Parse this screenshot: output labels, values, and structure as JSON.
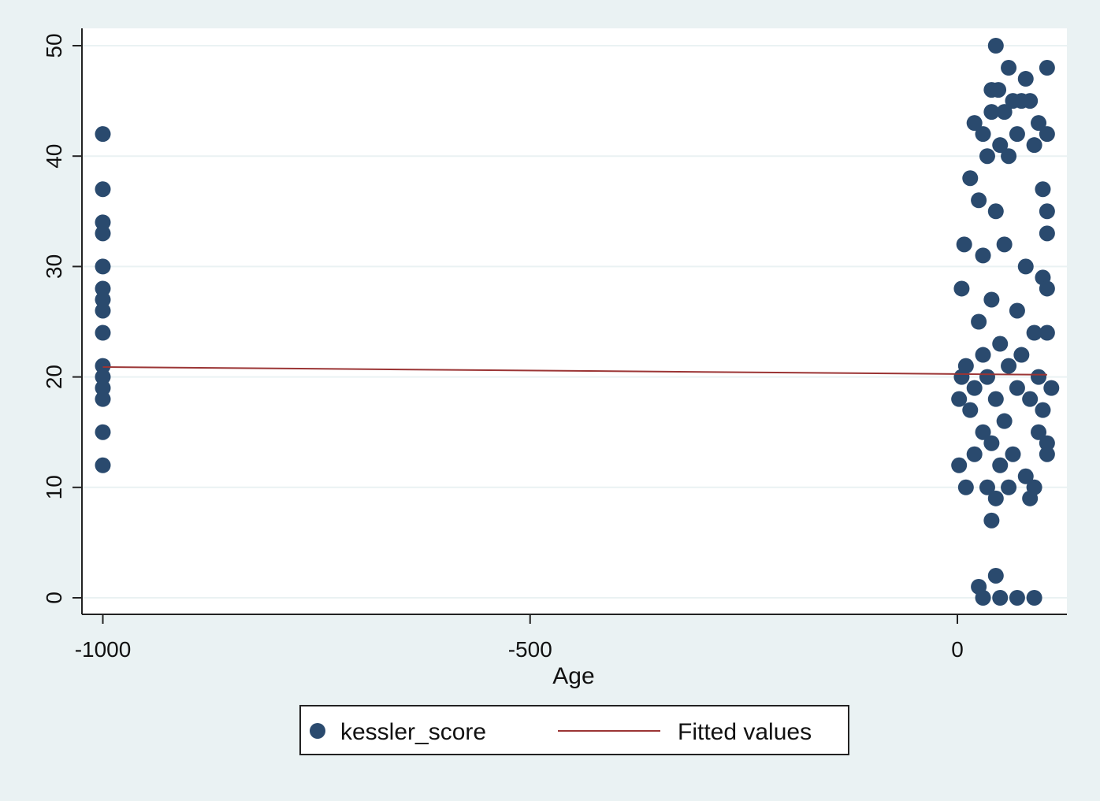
{
  "chart_data": {
    "type": "scatter",
    "title": "",
    "xlabel": "Age",
    "ylabel": "",
    "xlim": [
      -1000,
      115
    ],
    "ylim": [
      0,
      50
    ],
    "x_ticks": [
      -1000,
      -500,
      0
    ],
    "y_ticks": [
      0,
      10,
      20,
      30,
      40,
      50
    ],
    "grid": "horizontal",
    "legend_position": "bottom",
    "colors": {
      "background": "#eaf2f3",
      "plot_background": "#ffffff",
      "grid": "#eaf2f3",
      "marker": "#2a4a6e",
      "fitted": "#9b3535"
    },
    "series": [
      {
        "name": "kessler_score",
        "kind": "scatter",
        "points": [
          [
            -1000,
            42
          ],
          [
            -1000,
            37
          ],
          [
            -1000,
            34
          ],
          [
            -1000,
            33
          ],
          [
            -1000,
            30
          ],
          [
            -1000,
            28
          ],
          [
            -1000,
            27
          ],
          [
            -1000,
            26
          ],
          [
            -1000,
            24
          ],
          [
            -1000,
            21
          ],
          [
            -1000,
            20
          ],
          [
            -1000,
            19
          ],
          [
            -1000,
            18
          ],
          [
            -1000,
            15
          ],
          [
            -1000,
            12
          ],
          [
            45,
            50
          ],
          [
            60,
            48
          ],
          [
            105,
            48
          ],
          [
            80,
            47
          ],
          [
            40,
            46
          ],
          [
            48,
            46
          ],
          [
            65,
            45
          ],
          [
            75,
            45
          ],
          [
            85,
            45
          ],
          [
            40,
            44
          ],
          [
            55,
            44
          ],
          [
            20,
            43
          ],
          [
            95,
            43
          ],
          [
            30,
            42
          ],
          [
            105,
            42
          ],
          [
            70,
            42
          ],
          [
            50,
            41
          ],
          [
            90,
            41
          ],
          [
            35,
            40
          ],
          [
            60,
            40
          ],
          [
            15,
            38
          ],
          [
            100,
            37
          ],
          [
            25,
            36
          ],
          [
            45,
            35
          ],
          [
            105,
            35
          ],
          [
            8,
            32
          ],
          [
            55,
            32
          ],
          [
            105,
            33
          ],
          [
            30,
            31
          ],
          [
            80,
            30
          ],
          [
            100,
            29
          ],
          [
            5,
            28
          ],
          [
            105,
            28
          ],
          [
            40,
            27
          ],
          [
            70,
            26
          ],
          [
            25,
            25
          ],
          [
            90,
            24
          ],
          [
            105,
            24
          ],
          [
            50,
            23
          ],
          [
            30,
            22
          ],
          [
            75,
            22
          ],
          [
            10,
            21
          ],
          [
            60,
            21
          ],
          [
            35,
            20
          ],
          [
            95,
            20
          ],
          [
            5,
            20
          ],
          [
            20,
            19
          ],
          [
            110,
            19
          ],
          [
            70,
            19
          ],
          [
            2,
            18
          ],
          [
            45,
            18
          ],
          [
            85,
            18
          ],
          [
            15,
            17
          ],
          [
            100,
            17
          ],
          [
            55,
            16
          ],
          [
            30,
            15
          ],
          [
            95,
            15
          ],
          [
            40,
            14
          ],
          [
            105,
            14
          ],
          [
            20,
            13
          ],
          [
            65,
            13
          ],
          [
            105,
            13
          ],
          [
            50,
            12
          ],
          [
            2,
            12
          ],
          [
            80,
            11
          ],
          [
            10,
            10
          ],
          [
            35,
            10
          ],
          [
            60,
            10
          ],
          [
            90,
            10
          ],
          [
            45,
            9
          ],
          [
            85,
            9
          ],
          [
            40,
            7
          ],
          [
            45,
            2
          ],
          [
            25,
            1
          ],
          [
            30,
            0
          ],
          [
            50,
            0
          ],
          [
            70,
            0
          ],
          [
            90,
            0
          ]
        ]
      },
      {
        "name": "Fitted values",
        "kind": "line",
        "points": [
          [
            -1000,
            20.9
          ],
          [
            105,
            20.2
          ]
        ]
      }
    ]
  }
}
